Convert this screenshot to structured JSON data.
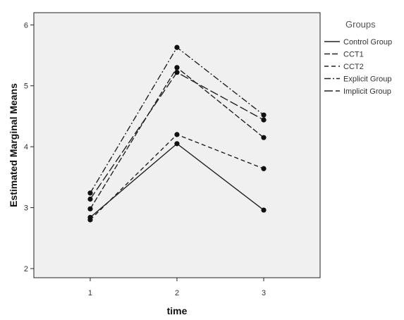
{
  "chart_data": {
    "type": "line",
    "xlabel": "time",
    "ylabel": "Estimated Marginal Means",
    "x": [
      1,
      2,
      3
    ],
    "xticks": [
      "1",
      "2",
      "3"
    ],
    "ylim": [
      1.85,
      6.2
    ],
    "yticks": [
      "2",
      "3",
      "4",
      "5",
      "6"
    ],
    "grid": false,
    "legend": {
      "title": "Groups",
      "position": "right"
    },
    "series": [
      {
        "name": "Control Group",
        "values": [
          2.84,
          4.05,
          2.96
        ],
        "dash": "none"
      },
      {
        "name": "CCT1",
        "values": [
          2.98,
          5.3,
          4.15
        ],
        "dash": "8,3"
      },
      {
        "name": "CCT2",
        "values": [
          2.8,
          4.2,
          3.64
        ],
        "dash": "6,4"
      },
      {
        "name": "Explicit Group",
        "values": [
          3.24,
          5.63,
          4.52
        ],
        "dash": "9,3,2,3"
      },
      {
        "name": "Implicit Group",
        "values": [
          3.14,
          5.22,
          4.44
        ],
        "dash": "12,4"
      }
    ]
  }
}
